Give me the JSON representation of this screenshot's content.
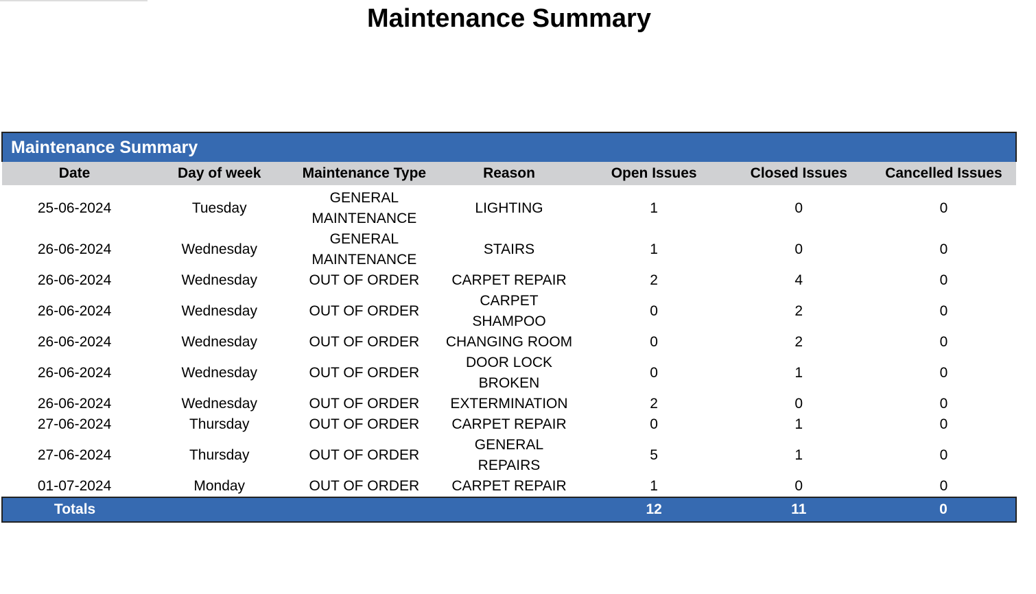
{
  "title": "Maintenance Summary",
  "table": {
    "caption": "Maintenance Summary",
    "headers": [
      "Date",
      "Day of week",
      "Maintenance Type",
      "Reason",
      "Open Issues",
      "Closed Issues",
      "Cancelled Issues"
    ],
    "rows": [
      [
        "25-06-2024",
        "Tuesday",
        "GENERAL MAINTENANCE",
        "LIGHTING",
        1,
        0,
        0
      ],
      [
        "26-06-2024",
        "Wednesday",
        "GENERAL MAINTENANCE",
        "STAIRS",
        1,
        0,
        0
      ],
      [
        "26-06-2024",
        "Wednesday",
        "OUT OF ORDER",
        "CARPET REPAIR",
        2,
        4,
        0
      ],
      [
        "26-06-2024",
        "Wednesday",
        "OUT OF ORDER",
        "CARPET SHAMPOO",
        0,
        2,
        0
      ],
      [
        "26-06-2024",
        "Wednesday",
        "OUT OF ORDER",
        "CHANGING ROOM",
        0,
        2,
        0
      ],
      [
        "26-06-2024",
        "Wednesday",
        "OUT OF ORDER",
        "DOOR LOCK BROKEN",
        0,
        1,
        0
      ],
      [
        "26-06-2024",
        "Wednesday",
        "OUT OF ORDER",
        "EXTERMINATION",
        2,
        0,
        0
      ],
      [
        "27-06-2024",
        "Thursday",
        "OUT OF ORDER",
        "CARPET REPAIR",
        0,
        1,
        0
      ],
      [
        "27-06-2024",
        "Thursday",
        "OUT OF ORDER",
        "GENERAL REPAIRS",
        5,
        1,
        0
      ],
      [
        "01-07-2024",
        "Monday",
        "OUT OF ORDER",
        "CARPET REPAIR",
        1,
        0,
        0
      ]
    ],
    "totals": {
      "label": "Totals",
      "values": [
        12,
        11,
        0
      ]
    }
  }
}
